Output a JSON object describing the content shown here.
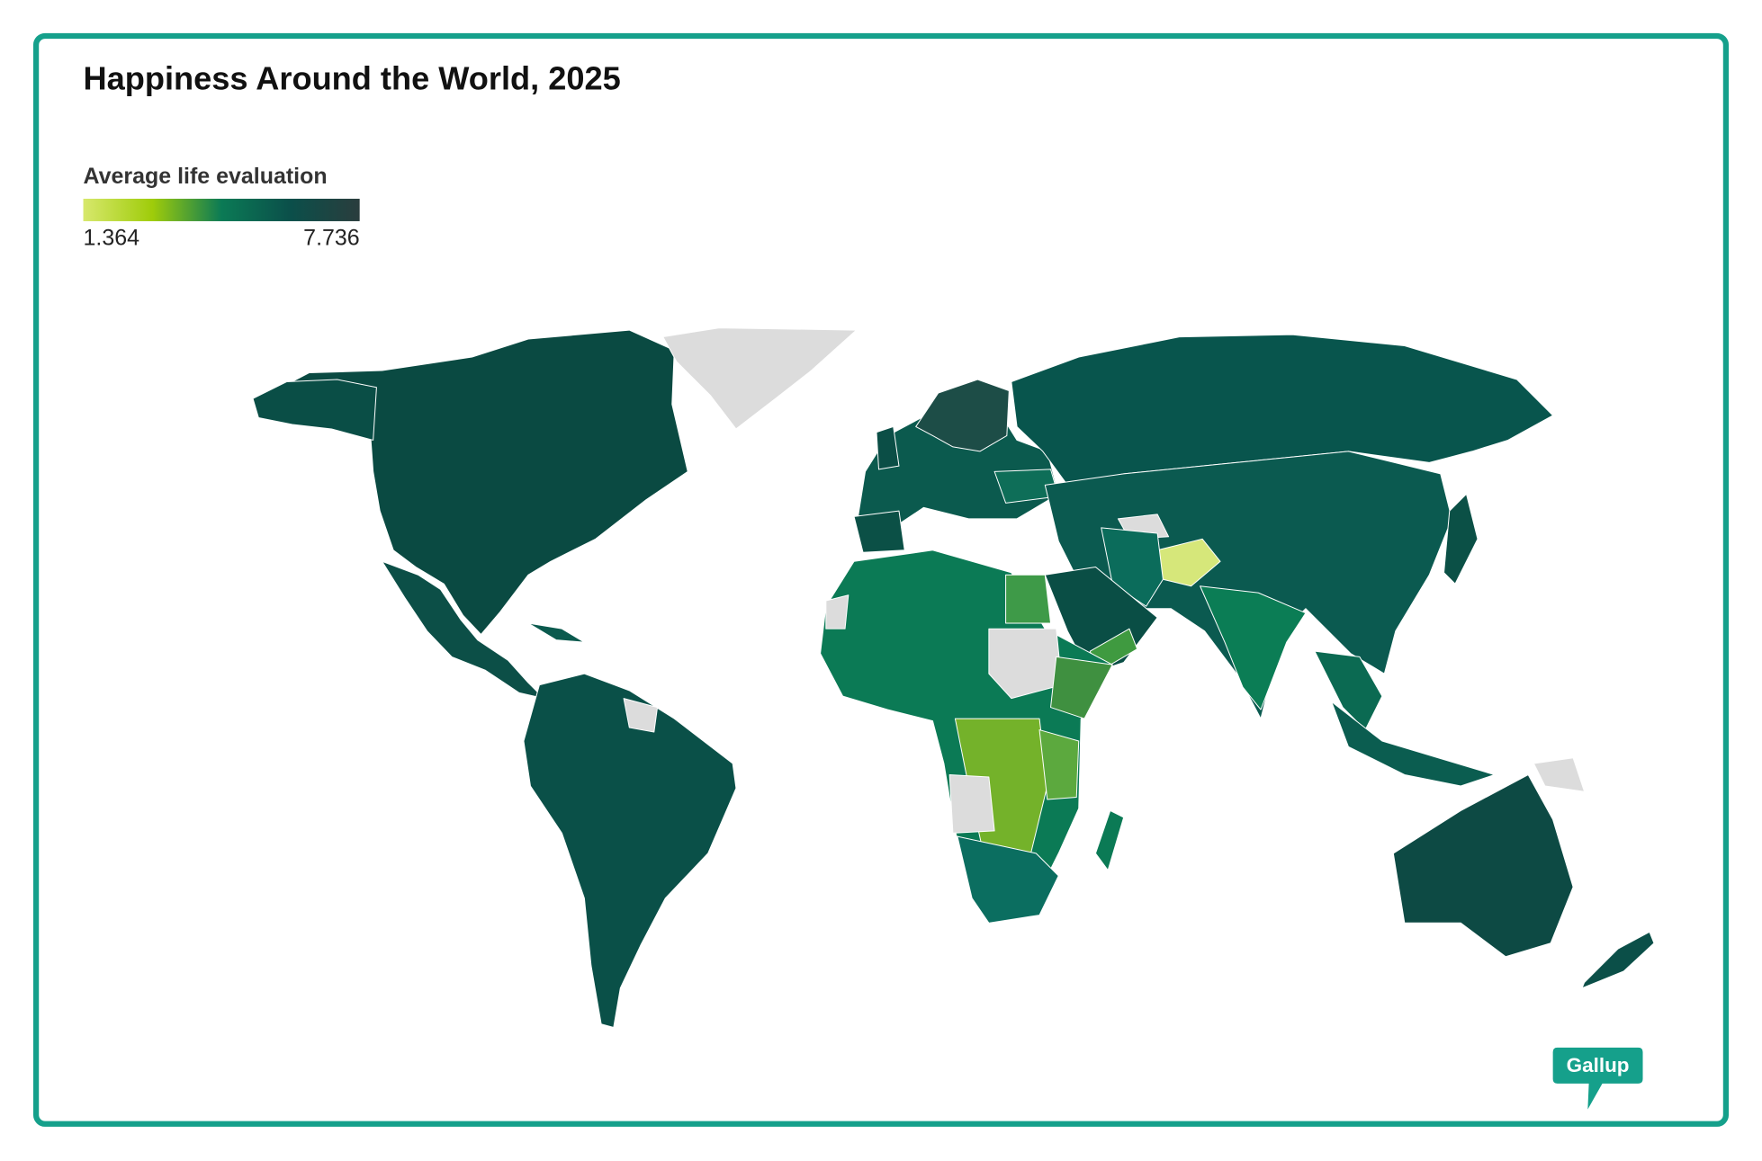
{
  "title": "Happiness Around the World, 2025",
  "legend": {
    "title": "Average life evaluation",
    "min": 1.364,
    "max": 7.736,
    "colors": [
      "#d7e86c",
      "#9fcc0a",
      "#0b7a55",
      "#0b4f4a",
      "#2a3d3d"
    ]
  },
  "brand": "Gallup"
}
